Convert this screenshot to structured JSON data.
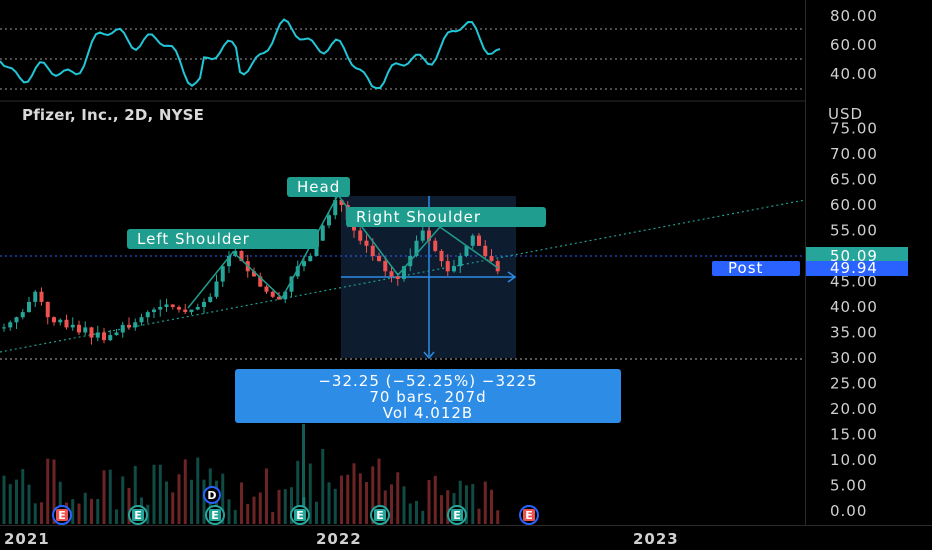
{
  "symbol_line": "Pfizer, Inc., 2D, NYSE",
  "currency": "USD",
  "colors": {
    "up": "#26a69a",
    "down": "#ef5350",
    "rsi": "#22c6d6",
    "measure": "#2d8ce6",
    "pattern": "#1f9d8e",
    "last_price": "#26a69a",
    "post": "#2962ff"
  },
  "rsi_axis": {
    "ticks": [
      "80.00",
      "60.00",
      "40.00"
    ]
  },
  "price_axis": {
    "ticks": [
      "75.00",
      "70.00",
      "65.00",
      "60.00",
      "55.00",
      "50.00",
      "45.00",
      "40.00",
      "35.00",
      "30.00",
      "25.00",
      "20.00",
      "15.00",
      "10.00",
      "5.00",
      "0.00"
    ]
  },
  "time_axis": {
    "labels": [
      "2021",
      "2022",
      "2023"
    ]
  },
  "last_price": "50.09",
  "post": {
    "label": "Post",
    "price": "49.94"
  },
  "pattern": {
    "left_shoulder": "Left Shoulder",
    "head": "Head",
    "right_shoulder": "Right Shoulder"
  },
  "measure": {
    "line1": "−32.25 (−52.25%) −3225",
    "line2": "70 bars, 207d",
    "line3": "Vol 4.012B"
  },
  "markers": {
    "dividend": "D",
    "earnings": "E"
  },
  "chart_data": {
    "type": "line",
    "title": "Pfizer, Inc., 2D, NYSE",
    "xlabel": "",
    "ylabel": "USD",
    "ylim": [
      0,
      75
    ],
    "grid": false,
    "series": [
      {
        "values": [
          36,
          37,
          38,
          39,
          41,
          43,
          41,
          38,
          37,
          37.5,
          36,
          36.5,
          35,
          36,
          34,
          35,
          33.5,
          34.5,
          35,
          36.5,
          36,
          37,
          38,
          39,
          39.5,
          40,
          40.5,
          40,
          39.5,
          39,
          39.5,
          40,
          41,
          42,
          45,
          48,
          50,
          51,
          49,
          47,
          46,
          44,
          43,
          42,
          41.5,
          43,
          46,
          48,
          49,
          50,
          53,
          56,
          58,
          61,
          60,
          57,
          55,
          53,
          52,
          50,
          49,
          47,
          46,
          45.5,
          48,
          50,
          53,
          55,
          53,
          51,
          49,
          47,
          48,
          50,
          52,
          54,
          52,
          50,
          49,
          47
        ]
      }
    ]
  }
}
